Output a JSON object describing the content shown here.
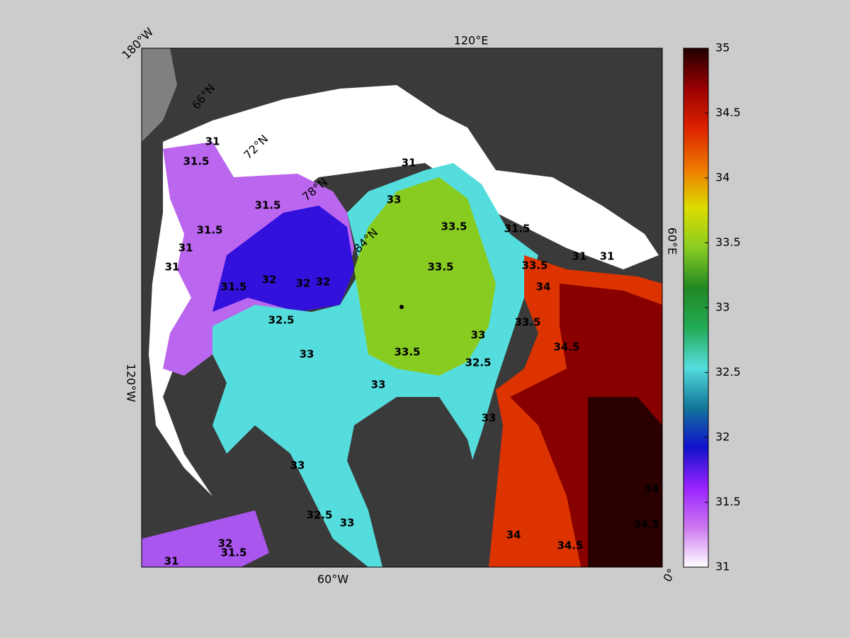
{
  "map": {
    "longitude_labels": [
      "180°W",
      "120°E",
      "60°E",
      "0°",
      "60°W",
      "120°W"
    ],
    "latitude_labels": [
      "66°N",
      "72°N",
      "78°N",
      "84°N"
    ],
    "contour_labels": [
      "31",
      "31.5",
      "31.5",
      "31.5",
      "31",
      "31",
      "31.5",
      "32",
      "32",
      "32",
      "32.5",
      "33",
      "33.5",
      "33.5",
      "33.5",
      "33",
      "31",
      "33",
      "32.5",
      "33",
      "33",
      "32.5",
      "33",
      "34",
      "34.5",
      "34.5",
      "34",
      "33.5",
      "33.5",
      "31",
      "31",
      "31.5",
      "34",
      "34.5",
      "32",
      "31.5",
      "31",
      "33"
    ]
  },
  "colorbar": {
    "range": [
      31,
      35
    ],
    "ticks": [
      31,
      31.5,
      32,
      32.5,
      33,
      33.5,
      34,
      34.5,
      35
    ],
    "colormap": [
      "#ffffff",
      "#cc77ee",
      "#9922ff",
      "#1111cc",
      "#117799",
      "#55dddd",
      "#22aa55",
      "#228822",
      "#88cc22",
      "#dddd00",
      "#ee7700",
      "#dd2200",
      "#990000",
      "#220000"
    ]
  }
}
